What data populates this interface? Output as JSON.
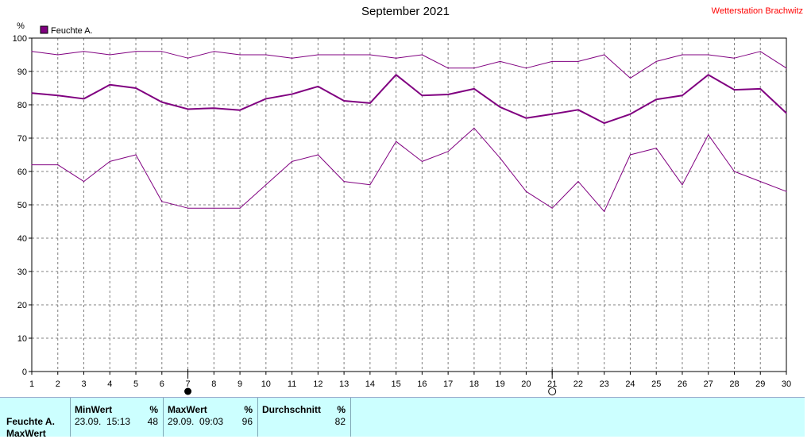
{
  "title": "September 2021",
  "station": "Wetterstation Brachwitz",
  "colors": {
    "series": "#800080",
    "grid": "#808080",
    "table_bg": "#ccffff"
  },
  "chart_data": {
    "type": "line",
    "unit": "%",
    "legend": "Feuchte A.",
    "legend_position": "top-left",
    "grid": true,
    "xlim": [
      1,
      30
    ],
    "ylim": [
      0,
      100
    ],
    "x": [
      1,
      2,
      3,
      4,
      5,
      6,
      7,
      8,
      9,
      10,
      11,
      12,
      13,
      14,
      15,
      16,
      17,
      18,
      19,
      20,
      21,
      22,
      23,
      24,
      25,
      26,
      27,
      28,
      29,
      30
    ],
    "y_ticks": [
      0,
      10,
      20,
      30,
      40,
      50,
      60,
      70,
      80,
      90,
      100
    ],
    "series": [
      {
        "role": "max",
        "values": [
          96,
          95,
          96,
          95,
          96,
          96,
          94,
          96,
          95,
          95,
          94,
          95,
          95,
          95,
          94,
          95,
          91,
          91,
          93,
          91,
          93,
          93,
          95,
          88,
          93,
          95,
          95,
          94,
          96,
          91
        ]
      },
      {
        "role": "mean",
        "values": [
          83.5,
          82.8,
          81.8,
          86,
          85,
          80.8,
          78.7,
          79,
          78.4,
          81.8,
          83.2,
          85.5,
          81.2,
          80.5,
          89,
          82.8,
          83.1,
          84.8,
          79.3,
          76,
          77.2,
          78.5,
          74.5,
          77.2,
          81.6,
          82.8,
          89,
          84.5,
          84.8,
          77.5
        ]
      },
      {
        "role": "min",
        "values": [
          62,
          62,
          57,
          63,
          65,
          51,
          49,
          49,
          49,
          56,
          63,
          65,
          57,
          56,
          69,
          63,
          66,
          73,
          64,
          54,
          49,
          57,
          48,
          65,
          67,
          56,
          71,
          60,
          57,
          54
        ]
      }
    ],
    "markers": [
      {
        "x": 7,
        "symbol": "filled-circle"
      },
      {
        "x": 21,
        "symbol": "open-circle"
      }
    ]
  },
  "table": {
    "row_label": "Feuchte A.",
    "row_label2": "MaxWert",
    "min": {
      "header": "MinWert",
      "unit": "%",
      "date": "23.09.  15:13",
      "value": "48"
    },
    "max": {
      "header": "MaxWert",
      "unit": "%",
      "date": "29.09.  09:03",
      "value": "96"
    },
    "avg": {
      "header": "Durchschnitt",
      "unit": "%",
      "value": "82"
    }
  }
}
